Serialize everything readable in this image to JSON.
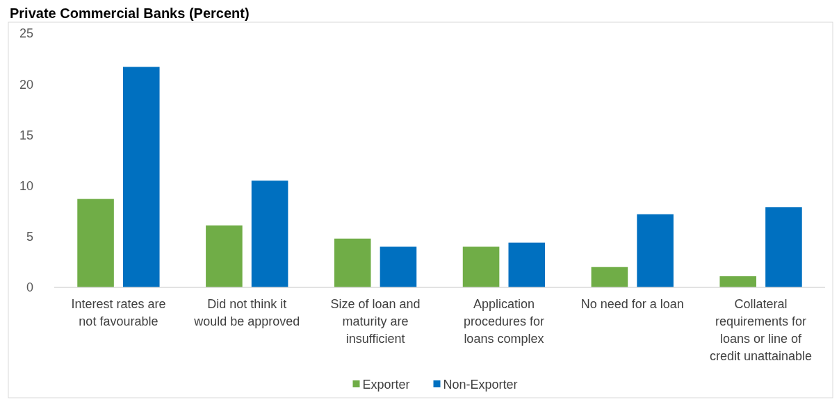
{
  "chart_data": {
    "type": "bar",
    "title": "Private Commercial Banks (Percent)",
    "categories": [
      "Interest rates are not favourable",
      "Did not think it would be approved",
      "Size of loan and maturity are insufficient",
      "Application procedures for loans complex",
      "No need for a loan",
      "Collateral requirements for loans or line of credit unattainable"
    ],
    "series": [
      {
        "name": "Exporter",
        "color": "#70ad47",
        "values": [
          8.7,
          6.1,
          4.8,
          4.0,
          2.0,
          1.1
        ]
      },
      {
        "name": "Non-Exporter",
        "color": "#0070c0",
        "values": [
          21.7,
          10.5,
          4.0,
          4.4,
          7.2,
          7.9
        ]
      }
    ],
    "ylim": [
      0,
      25
    ],
    "yticks": [
      0,
      5,
      10,
      15,
      20,
      25
    ],
    "grid": false,
    "legend": "bottom"
  }
}
